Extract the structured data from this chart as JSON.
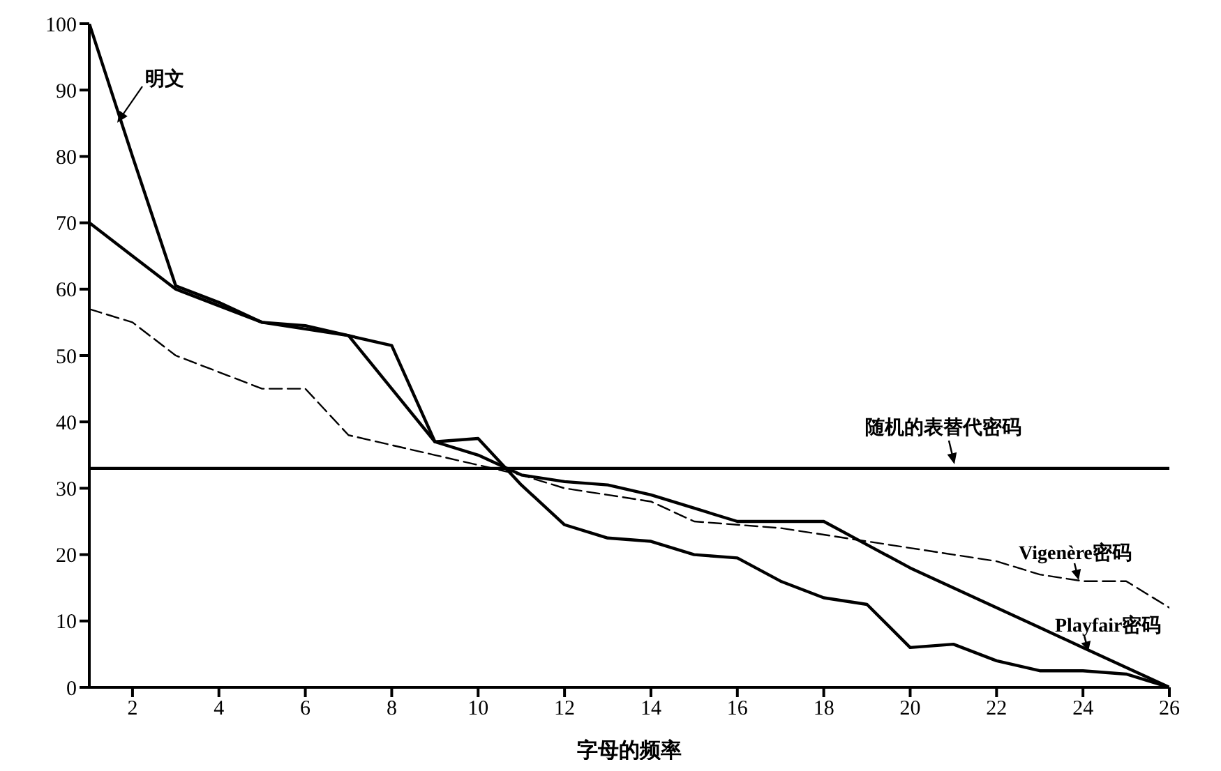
{
  "chart_data": {
    "type": "line",
    "xlabel": "字母的频率",
    "x": [
      1,
      2,
      3,
      4,
      5,
      6,
      7,
      8,
      9,
      10,
      11,
      12,
      13,
      14,
      15,
      16,
      17,
      18,
      19,
      20,
      21,
      22,
      23,
      24,
      25,
      26
    ],
    "series": [
      {
        "name": "明文",
        "color": "#000000",
        "values": [
          100,
          80,
          60.5,
          58,
          55,
          54.5,
          53,
          51.5,
          37,
          37.5,
          30.5,
          24.5,
          22.5,
          22,
          20,
          19.5,
          16,
          13.5,
          12.5,
          6,
          6.5,
          4,
          2.5,
          2.5,
          2,
          0
        ]
      },
      {
        "name": "Playfair密码",
        "color": "#000000",
        "values": [
          70,
          65,
          60,
          57.5,
          55,
          54,
          53,
          45,
          37,
          35,
          32,
          31,
          30.5,
          29,
          27,
          25,
          25,
          25,
          21.5,
          18,
          15,
          12,
          9,
          6,
          3,
          0
        ]
      },
      {
        "name": "Vigenère密码",
        "color": "#000000",
        "line_style": "dashed",
        "values": [
          57,
          55,
          50,
          47.5,
          45,
          45,
          38,
          36.5,
          35,
          33.5,
          32,
          30,
          29,
          28,
          25,
          24.5,
          24,
          23,
          22,
          21,
          20,
          19,
          17,
          16,
          16,
          12
        ]
      },
      {
        "name": "随机的表替代密码",
        "color": "#000000",
        "values": [
          33,
          33,
          33,
          33,
          33,
          33,
          33,
          33,
          33,
          33,
          33,
          33,
          33,
          33,
          33,
          33,
          33,
          33,
          33,
          33,
          33,
          33,
          33,
          33,
          33,
          33
        ]
      }
    ],
    "xlim": [
      1,
      26
    ],
    "xticks": [
      2,
      4,
      6,
      8,
      10,
      12,
      14,
      16,
      18,
      20,
      22,
      24,
      26
    ],
    "ylim": [
      0,
      100
    ],
    "yticks": [
      0,
      10,
      20,
      30,
      40,
      50,
      60,
      70,
      80,
      90,
      100
    ],
    "grid": false,
    "legend": false,
    "marker": "none",
    "line_style": "solid"
  }
}
